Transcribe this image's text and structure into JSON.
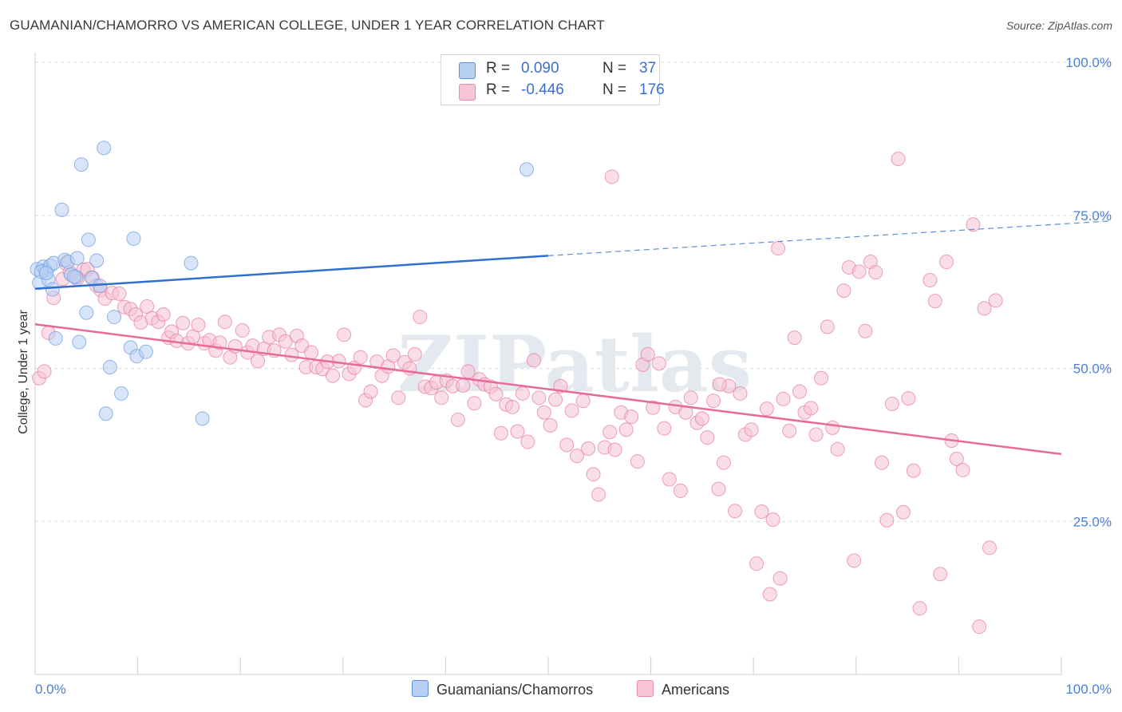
{
  "title": "GUAMANIAN/CHAMORRO VS AMERICAN COLLEGE, UNDER 1 YEAR CORRELATION CHART",
  "source": "Source: ZipAtlas.com",
  "watermark": "ZIPatlas",
  "legend": {
    "r_label": "R =",
    "n_label": "N =",
    "rows": [
      {
        "r": "0.090",
        "n": "37",
        "color": "#a9c6ef",
        "border": "#5b8fd6"
      },
      {
        "r": "-0.446",
        "n": "176",
        "color": "#f7bcd0",
        "border": "#e98aaa"
      }
    ]
  },
  "bottom_legend": [
    {
      "label": "Guamanians/Chamorros",
      "color": "#a9c6ef",
      "border": "#5b8fd6"
    },
    {
      "label": "Americans",
      "color": "#f7bcd0",
      "border": "#e98aaa"
    }
  ],
  "chart_data": {
    "type": "scatter",
    "title": "GUAMANIAN/CHAMORRO VS AMERICAN COLLEGE, UNDER 1 YEAR CORRELATION CHART",
    "xlabel": "",
    "ylabel": "College, Under 1 year",
    "xlim": [
      0,
      100
    ],
    "ylim": [
      0,
      100
    ],
    "x_tick_labels": [
      "0.0%",
      "100.0%"
    ],
    "y_ticks": [
      25,
      50,
      75,
      100
    ],
    "y_tick_labels": [
      "25.0%",
      "50.0%",
      "75.0%",
      "100.0%"
    ],
    "grid": true,
    "series": [
      {
        "name": "Guamanians/Chamorros",
        "color": "#6e9fe0",
        "fill": "#b8d0f2",
        "trend": {
          "x": [
            0,
            50
          ],
          "y": [
            63.0,
            68.4
          ],
          "dashed_to": [
            100,
            74.0
          ]
        },
        "points": [
          [
            0.2,
            66.2
          ],
          [
            0.4,
            64.0
          ],
          [
            0.8,
            66.6
          ],
          [
            1.0,
            66.0
          ],
          [
            1.3,
            64.5
          ],
          [
            1.5,
            66.8
          ],
          [
            1.7,
            62.9
          ],
          [
            1.8,
            67.2
          ],
          [
            2.0,
            54.9
          ],
          [
            2.6,
            75.9
          ],
          [
            2.9,
            67.7
          ],
          [
            3.2,
            67.4
          ],
          [
            3.5,
            65.3
          ],
          [
            4.0,
            64.9
          ],
          [
            4.1,
            68.0
          ],
          [
            4.3,
            54.3
          ],
          [
            4.5,
            83.3
          ],
          [
            5.0,
            59.1
          ],
          [
            5.2,
            71.0
          ],
          [
            5.5,
            64.8
          ],
          [
            6.0,
            67.6
          ],
          [
            6.3,
            63.5
          ],
          [
            6.7,
            86.0
          ],
          [
            6.9,
            42.6
          ],
          [
            7.3,
            50.2
          ],
          [
            7.7,
            58.4
          ],
          [
            8.4,
            45.9
          ],
          [
            9.3,
            53.4
          ],
          [
            9.6,
            71.2
          ],
          [
            9.9,
            52.0
          ],
          [
            10.8,
            52.7
          ],
          [
            15.2,
            67.2
          ],
          [
            16.3,
            41.8
          ],
          [
            47.9,
            82.5
          ],
          [
            0.6,
            65.8
          ],
          [
            1.1,
            65.6
          ],
          [
            3.8,
            65.0
          ]
        ]
      },
      {
        "name": "Americans",
        "color": "#e97fa6",
        "fill": "#f6c3d4",
        "trend": {
          "x": [
            0,
            100
          ],
          "y": [
            57.2,
            36.0
          ]
        },
        "points": [
          [
            0.4,
            48.4
          ],
          [
            0.9,
            49.5
          ],
          [
            1.3,
            55.8
          ],
          [
            1.8,
            61.5
          ],
          [
            2.7,
            64.6
          ],
          [
            3.0,
            67.1
          ],
          [
            3.4,
            65.7
          ],
          [
            4.1,
            64.6
          ],
          [
            4.7,
            66.1
          ],
          [
            5.1,
            66.2
          ],
          [
            5.6,
            64.8
          ],
          [
            6.0,
            63.5
          ],
          [
            6.4,
            62.8
          ],
          [
            6.8,
            61.4
          ],
          [
            7.5,
            62.3
          ],
          [
            8.2,
            62.2
          ],
          [
            8.7,
            60.0
          ],
          [
            9.3,
            59.7
          ],
          [
            9.8,
            58.8
          ],
          [
            10.3,
            57.5
          ],
          [
            10.9,
            60.1
          ],
          [
            11.4,
            58.2
          ],
          [
            12.0,
            57.6
          ],
          [
            12.5,
            58.8
          ],
          [
            13.0,
            55.0
          ],
          [
            13.3,
            56.0
          ],
          [
            13.8,
            54.5
          ],
          [
            14.4,
            57.4
          ],
          [
            14.9,
            54.1
          ],
          [
            15.4,
            55.2
          ],
          [
            15.9,
            57.1
          ],
          [
            16.5,
            54.1
          ],
          [
            17.0,
            54.6
          ],
          [
            17.6,
            52.9
          ],
          [
            18.0,
            54.2
          ],
          [
            18.5,
            57.6
          ],
          [
            19.0,
            51.8
          ],
          [
            19.5,
            53.6
          ],
          [
            20.2,
            56.2
          ],
          [
            20.7,
            52.6
          ],
          [
            21.2,
            53.7
          ],
          [
            21.7,
            51.2
          ],
          [
            22.3,
            53.2
          ],
          [
            22.8,
            55.1
          ],
          [
            23.3,
            52.9
          ],
          [
            23.8,
            55.5
          ],
          [
            24.4,
            54.4
          ],
          [
            25.0,
            52.2
          ],
          [
            25.5,
            55.3
          ],
          [
            26.0,
            53.7
          ],
          [
            26.4,
            50.2
          ],
          [
            26.9,
            52.6
          ],
          [
            27.4,
            50.2
          ],
          [
            28.0,
            49.9
          ],
          [
            28.5,
            51.1
          ],
          [
            29.0,
            48.8
          ],
          [
            29.6,
            51.2
          ],
          [
            30.1,
            55.5
          ],
          [
            30.6,
            49.1
          ],
          [
            31.1,
            50.1
          ],
          [
            31.7,
            51.8
          ],
          [
            32.2,
            44.8
          ],
          [
            32.7,
            46.2
          ],
          [
            33.3,
            51.1
          ],
          [
            33.8,
            48.8
          ],
          [
            34.4,
            50.3
          ],
          [
            34.9,
            52.1
          ],
          [
            35.4,
            45.2
          ],
          [
            36.0,
            51.0
          ],
          [
            36.5,
            50.0
          ],
          [
            37.0,
            52.3
          ],
          [
            37.5,
            58.4
          ],
          [
            38.0,
            47.0
          ],
          [
            38.6,
            46.8
          ],
          [
            39.1,
            47.7
          ],
          [
            39.6,
            45.2
          ],
          [
            40.1,
            48.0
          ],
          [
            40.7,
            47.1
          ],
          [
            41.2,
            41.6
          ],
          [
            41.7,
            47.2
          ],
          [
            42.2,
            49.5
          ],
          [
            42.8,
            44.3
          ],
          [
            43.3,
            48.2
          ],
          [
            43.8,
            47.4
          ],
          [
            44.4,
            47.0
          ],
          [
            44.9,
            45.8
          ],
          [
            45.4,
            39.4
          ],
          [
            45.9,
            44.1
          ],
          [
            46.5,
            43.7
          ],
          [
            47.0,
            39.7
          ],
          [
            47.5,
            45.9
          ],
          [
            48.0,
            38.0
          ],
          [
            48.6,
            51.3
          ],
          [
            49.1,
            45.2
          ],
          [
            49.6,
            42.8
          ],
          [
            50.2,
            40.7
          ],
          [
            50.7,
            44.9
          ],
          [
            51.2,
            47.1
          ],
          [
            51.8,
            37.5
          ],
          [
            52.3,
            43.1
          ],
          [
            52.8,
            35.7
          ],
          [
            53.4,
            44.7
          ],
          [
            53.9,
            36.9
          ],
          [
            54.4,
            32.7
          ],
          [
            54.9,
            29.4
          ],
          [
            55.5,
            37.1
          ],
          [
            56.0,
            39.6
          ],
          [
            56.5,
            36.7
          ],
          [
            57.1,
            42.8
          ],
          [
            57.6,
            40.0
          ],
          [
            58.1,
            42.1
          ],
          [
            58.7,
            34.8
          ],
          [
            59.2,
            50.6
          ],
          [
            59.7,
            52.3
          ],
          [
            60.2,
            43.6
          ],
          [
            60.8,
            50.8
          ],
          [
            61.3,
            40.2
          ],
          [
            61.8,
            31.9
          ],
          [
            62.4,
            43.7
          ],
          [
            62.9,
            30.0
          ],
          [
            63.4,
            42.8
          ],
          [
            63.9,
            45.2
          ],
          [
            64.5,
            41.1
          ],
          [
            65.0,
            41.8
          ],
          [
            65.5,
            38.7
          ],
          [
            66.1,
            44.7
          ],
          [
            66.6,
            30.3
          ],
          [
            67.1,
            34.6
          ],
          [
            67.6,
            47.1
          ],
          [
            68.2,
            26.7
          ],
          [
            68.7,
            45.9
          ],
          [
            69.2,
            39.2
          ],
          [
            69.8,
            40.0
          ],
          [
            70.3,
            18.1
          ],
          [
            70.8,
            26.6
          ],
          [
            71.3,
            43.4
          ],
          [
            71.9,
            25.3
          ],
          [
            72.4,
            69.6
          ],
          [
            72.9,
            45.0
          ],
          [
            73.5,
            39.8
          ],
          [
            74.0,
            55.0
          ],
          [
            74.5,
            46.2
          ],
          [
            75.0,
            42.8
          ],
          [
            75.6,
            43.5
          ],
          [
            76.1,
            39.2
          ],
          [
            76.6,
            48.4
          ],
          [
            77.2,
            56.8
          ],
          [
            77.7,
            40.3
          ],
          [
            78.2,
            36.8
          ],
          [
            78.8,
            62.7
          ],
          [
            79.3,
            66.5
          ],
          [
            79.8,
            18.6
          ],
          [
            80.3,
            65.8
          ],
          [
            80.9,
            56.1
          ],
          [
            81.4,
            67.4
          ],
          [
            81.9,
            65.7
          ],
          [
            82.5,
            34.6
          ],
          [
            83.0,
            25.2
          ],
          [
            83.5,
            44.2
          ],
          [
            84.1,
            84.2
          ],
          [
            84.6,
            26.5
          ],
          [
            85.1,
            45.1
          ],
          [
            85.6,
            33.3
          ],
          [
            86.2,
            10.8
          ],
          [
            71.6,
            13.1
          ],
          [
            72.6,
            15.7
          ],
          [
            87.2,
            64.4
          ],
          [
            87.7,
            61.0
          ],
          [
            88.2,
            16.4
          ],
          [
            88.8,
            67.4
          ],
          [
            89.3,
            38.2
          ],
          [
            89.8,
            35.2
          ],
          [
            90.4,
            33.4
          ],
          [
            91.4,
            73.5
          ],
          [
            92.0,
            7.8
          ],
          [
            92.5,
            59.8
          ],
          [
            93.0,
            20.7
          ],
          [
            93.6,
            61.1
          ],
          [
            56.2,
            81.3
          ],
          [
            66.7,
            47.4
          ]
        ]
      }
    ]
  }
}
